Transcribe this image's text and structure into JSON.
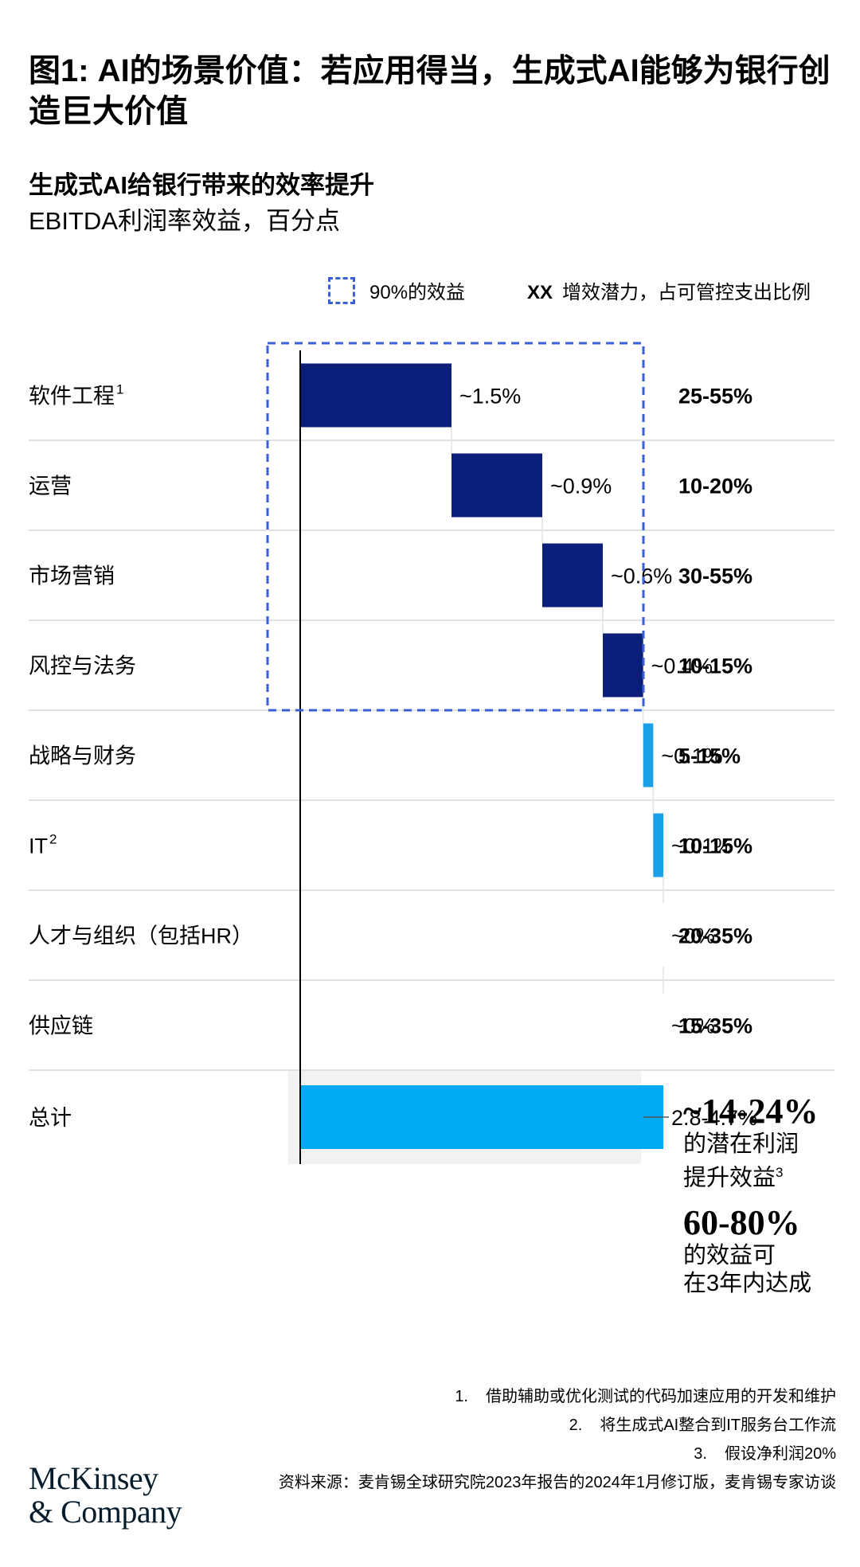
{
  "header": {
    "title": "图1: AI的场景价值：若应用得当，生成式AI能够为银行创造巨大价值"
  },
  "chart_data": {
    "type": "waterfall",
    "title": "生成式AI给银行带来的效率提升",
    "subtitle": "EBITDA利润率效益，百分点",
    "legend": {
      "benefit_90_label": "90%的效益",
      "xx_symbol": "XX",
      "xx_label": "增效潜力，占可管控支出比例"
    },
    "categories": [
      {
        "label": "软件工程",
        "sup": "1",
        "value": 1.5,
        "value_label": "~1.5%",
        "potential": "25-55%",
        "group": "core"
      },
      {
        "label": "运营",
        "sup": "",
        "value": 0.9,
        "value_label": "~0.9%",
        "potential": "10-20%",
        "group": "core"
      },
      {
        "label": "市场营销",
        "sup": "",
        "value": 0.6,
        "value_label": "~0.6%",
        "potential": "30-55%",
        "group": "core"
      },
      {
        "label": "风控与法务",
        "sup": "",
        "value": 0.4,
        "value_label": "~0.4%",
        "potential": "10-15%",
        "group": "core"
      },
      {
        "label": "战略与财务",
        "sup": "",
        "value": 0.1,
        "value_label": "~0.1%",
        "potential": "5-15%",
        "group": "minor"
      },
      {
        "label": "IT",
        "sup": "2",
        "value": 0.1,
        "value_label": "~0.1%",
        "potential": "10-15%",
        "group": "minor"
      },
      {
        "label": "人才与组织（包括HR）",
        "sup": "",
        "value": 0,
        "value_label": "~0%",
        "potential": "20-35%",
        "group": "minor"
      },
      {
        "label": "供应链",
        "sup": "",
        "value": 0,
        "value_label": "~0%",
        "potential": "15-35%",
        "group": "minor"
      }
    ],
    "total": {
      "label": "总计",
      "value": 3.6,
      "value_label": "2.8-4.7%"
    },
    "colors": {
      "core": "#0b1f7a",
      "minor": "#1aa0e6",
      "total": "#00a9f4",
      "dashed_box": "#3a5fd6",
      "total_bg": "#f2f2f2"
    }
  },
  "summary": {
    "big1": "~14-24%",
    "line1": "的潜在利润",
    "line2": "提升效益",
    "line2_sup": "3",
    "big2": "60-80%",
    "line3": "的效益可",
    "line4": "在3年内达成"
  },
  "footnotes": [
    {
      "num": "1.",
      "text": "借助辅助或优化测试的代码加速应用的开发和维护"
    },
    {
      "num": "2.",
      "text": "将生成式AI整合到IT服务台工作流"
    },
    {
      "num": "3.",
      "text": "假设净利润20%"
    }
  ],
  "source": "资料来源：麦肯锡全球研究院2023年报告的2024年1月修订版，麦肯锡专家访谈",
  "brand": {
    "line1": "McKinsey",
    "line2": "& Company"
  }
}
